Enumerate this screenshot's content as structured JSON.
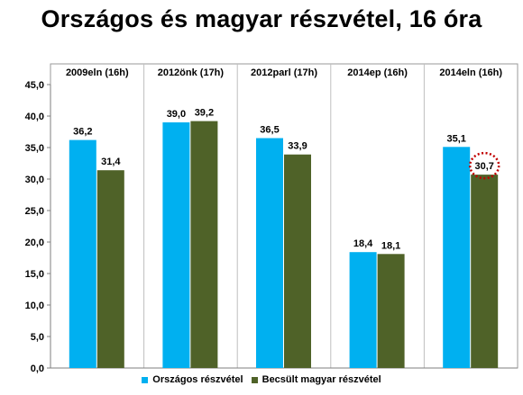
{
  "chart_data": {
    "type": "bar",
    "title": "Országos és magyar részvétel, 16 óra",
    "categories": [
      "2009eln (16h)",
      "2012önk (17h)",
      "2012parl (17h)",
      "2014ep (16h)",
      "2014eln (16h)"
    ],
    "series": [
      {
        "name": "Országos részvétel",
        "color": "#00B0F0",
        "values": [
          36.2,
          39.0,
          36.5,
          18.4,
          35.1
        ]
      },
      {
        "name": "Becsült magyar részvétel",
        "color": "#4F6228",
        "values": [
          31.4,
          39.2,
          33.9,
          18.1,
          30.7
        ]
      }
    ],
    "data_labels": [
      [
        "36,2",
        "39,0",
        "36,5",
        "18,4",
        "35,1"
      ],
      [
        "31,4",
        "39,2",
        "33,9",
        "18,1",
        "30,7"
      ]
    ],
    "y_ticks": [
      "0,0",
      "5,0",
      "10,0",
      "15,0",
      "20,0",
      "25,0",
      "30,0",
      "35,0",
      "40,0",
      "45,0"
    ],
    "ylim": [
      0,
      45
    ],
    "xlabel": "",
    "ylabel": "",
    "grid": false,
    "category_labels_position": "top",
    "legend_position": "bottom",
    "highlight": {
      "series": 1,
      "category": 4,
      "style": "dotted-circle",
      "color": "#C00000"
    }
  }
}
